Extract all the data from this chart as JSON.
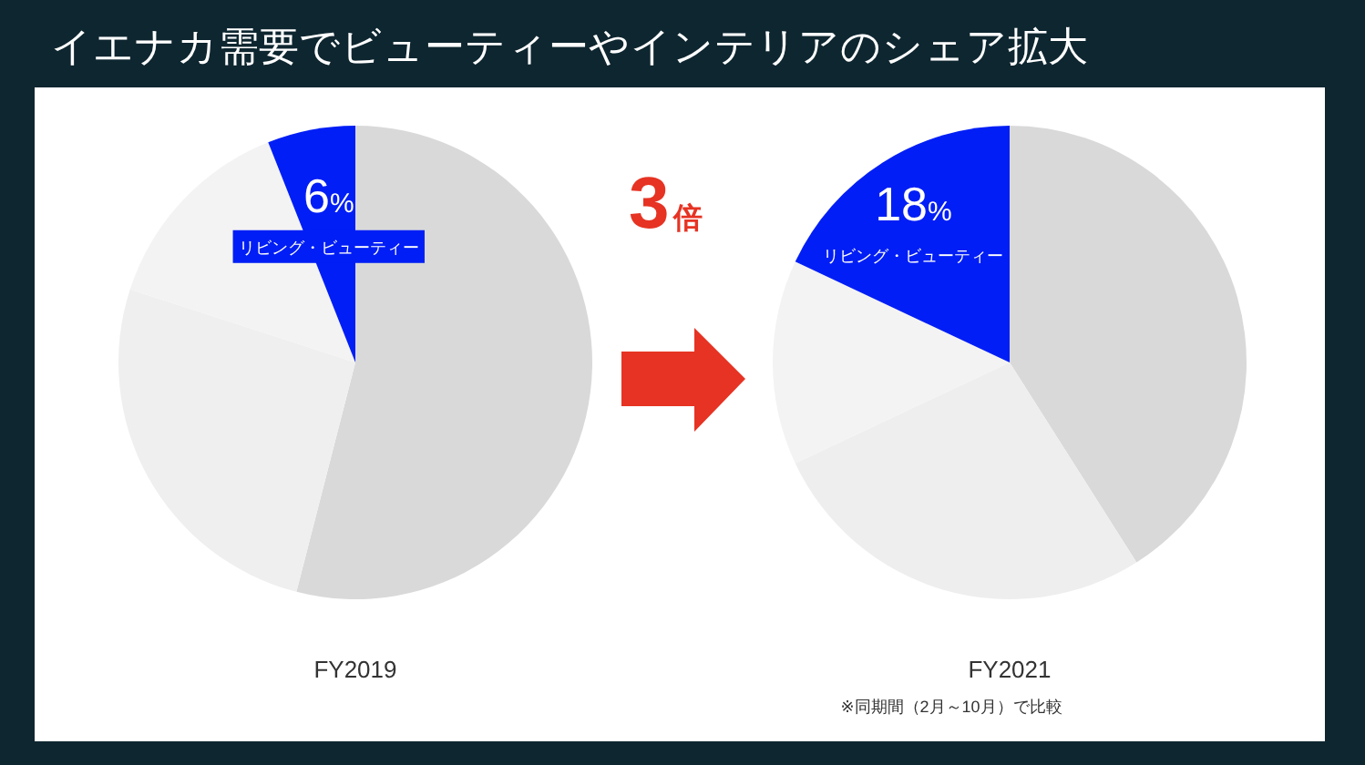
{
  "chart_data": [
    {
      "type": "other",
      "title": "イエナカ需要でビューティーやインテリアのシェア拡大"
    },
    {
      "type": "pie",
      "title": "FY2019",
      "categories": [
        null,
        null,
        null,
        "リビング・ビューティー"
      ],
      "values": [
        54,
        26,
        14,
        6
      ],
      "colors": [
        "#d9d9d9",
        "#efefef",
        "#f3f3f3",
        "#001ef5"
      ],
      "value_labels": [
        null,
        null,
        null,
        "6%"
      ]
    },
    {
      "type": "pie",
      "title": "FY2021",
      "categories": [
        null,
        null,
        null,
        "リビング・ビューティー"
      ],
      "values": [
        41,
        27,
        14,
        18
      ],
      "colors": [
        "#d9d9d9",
        "#eeeeee",
        "#f3f3f3",
        "#001ef5"
      ],
      "value_labels": [
        null,
        null,
        null,
        "18%"
      ],
      "annotations": [
        "3倍",
        "※同期間（2月～10月）で比較"
      ]
    }
  ]
}
